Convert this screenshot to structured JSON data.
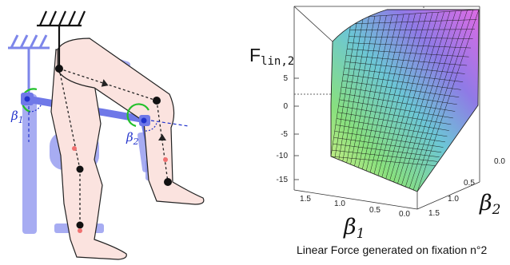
{
  "left_figure": {
    "beta1_symbol": "β",
    "beta1_sub": "1",
    "beta2_symbol": "β",
    "beta2_sub": "2"
  },
  "plot": {
    "zlabel_main": "F",
    "zlabel_sub": "lin,2",
    "xlabel_symbol": "β",
    "xlabel_sub": "1",
    "ylabel_symbol": "β",
    "ylabel_sub": "2",
    "z_ticks": [
      "5",
      "0",
      "-5",
      "-10",
      "-15"
    ],
    "beta1_ticks": [
      "1.5",
      "1.0",
      "0.5",
      "0.0"
    ],
    "beta2_ticks": [
      "0.0",
      "0.5",
      "1.0",
      "1.5"
    ],
    "caption": "Linear Force generated on fixation n°2"
  },
  "colors": {
    "joint_blue": "#6f78e8",
    "leg_fill": "#fbe3df",
    "circle_green": "#22c02a",
    "dash_blue": "#2233cc",
    "red_dot": "#f07070"
  }
}
